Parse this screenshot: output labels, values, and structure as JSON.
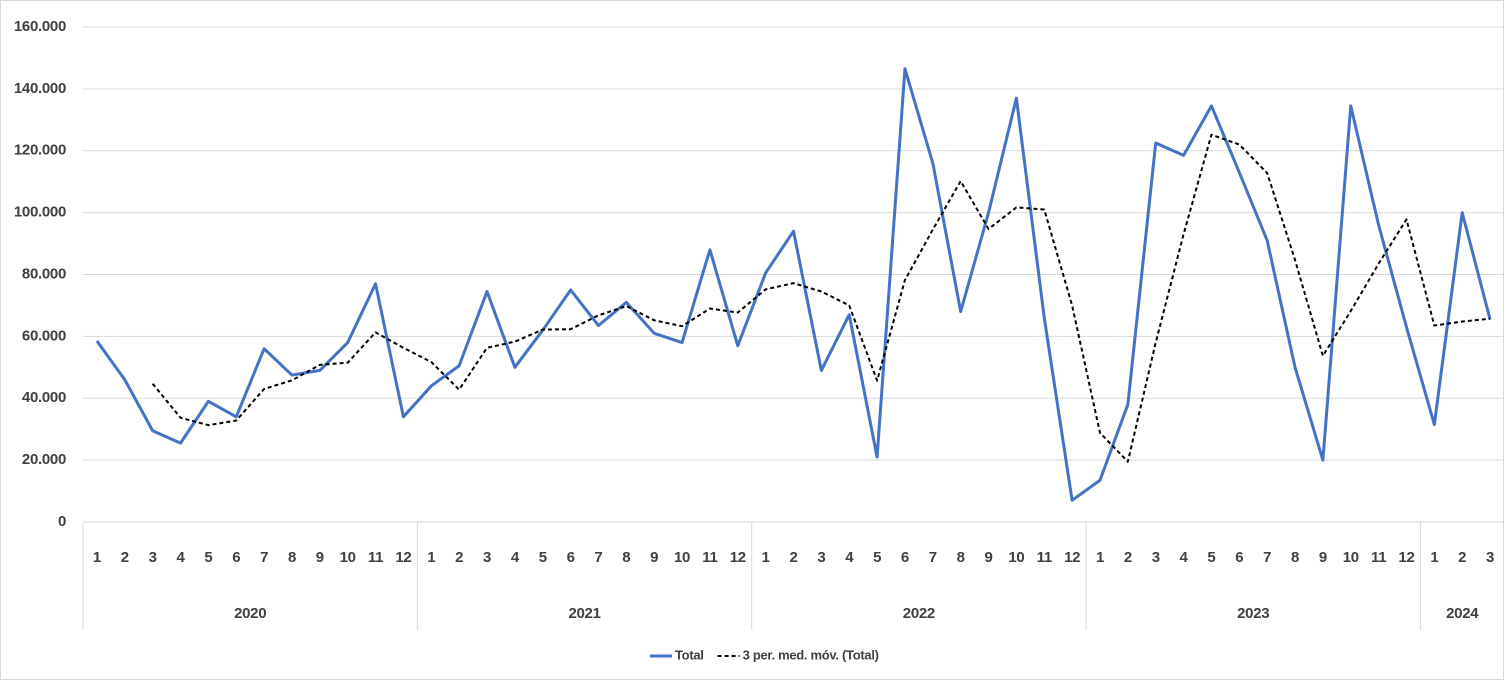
{
  "chart_data": {
    "type": "line",
    "categories": [
      "1",
      "2",
      "3",
      "4",
      "5",
      "6",
      "7",
      "8",
      "9",
      "10",
      "11",
      "12",
      "1",
      "2",
      "3",
      "4",
      "5",
      "6",
      "7",
      "8",
      "9",
      "10",
      "11",
      "12",
      "1",
      "2",
      "3",
      "4",
      "5",
      "6",
      "7",
      "8",
      "9",
      "10",
      "11",
      "12",
      "1",
      "2",
      "3",
      "4",
      "5",
      "6",
      "7",
      "8",
      "9",
      "10",
      "11",
      "12",
      "1",
      "2",
      "3"
    ],
    "groups": [
      "2020",
      "2021",
      "2022",
      "2023",
      "2024"
    ],
    "series": [
      {
        "name": "Total",
        "color": "#4472c4",
        "dashed": false,
        "values": [
          58500,
          46000,
          29500,
          25500,
          39000,
          34000,
          56000,
          47500,
          49000,
          58000,
          77000,
          34000,
          44000,
          50500,
          74500,
          50000,
          62000,
          75000,
          63500,
          71000,
          61000,
          58000,
          88000,
          57000,
          80500,
          94000,
          49000,
          67000,
          21000,
          146500,
          116000,
          68000,
          100000,
          137000,
          66000,
          7000,
          13500,
          38000,
          122500,
          118500,
          134500,
          113000,
          91000,
          50000,
          20000,
          134500,
          96000,
          63000,
          31500,
          100000,
          65500
        ]
      },
      {
        "name": "3 per. med. móv. (Total)",
        "color": "#000000",
        "dashed": true,
        "values": [
          null,
          null,
          44700,
          33700,
          31300,
          32800,
          43000,
          45800,
          50800,
          51500,
          61300,
          56300,
          51700,
          42800,
          56300,
          58300,
          62200,
          62300,
          66800,
          69800,
          65200,
          63300,
          69000,
          67700,
          75200,
          77200,
          74500,
          70000,
          45700,
          78200,
          94500,
          110200,
          94700,
          101700,
          101000,
          70000,
          28800,
          19500,
          58000,
          93000,
          125200,
          122000,
          112800,
          84700,
          53700,
          68200,
          83500,
          97800,
          63500,
          64800,
          65700
        ]
      }
    ],
    "ylim": [
      0,
      160000
    ],
    "yticks": [
      0,
      {
        "value": 20000,
        "label": "20.000"
      },
      {
        "value": 40000,
        "label": "40.000"
      },
      {
        "value": 60000,
        "label": "60.000"
      },
      {
        "value": 80000,
        "label": "80.000"
      },
      {
        "value": 100000,
        "label": "100.000"
      },
      {
        "value": 120000,
        "label": "120.000"
      },
      {
        "value": 140000,
        "label": "140.000"
      },
      {
        "value": 160000,
        "label": "160.000"
      }
    ],
    "grid": true,
    "legend": "bottom"
  }
}
